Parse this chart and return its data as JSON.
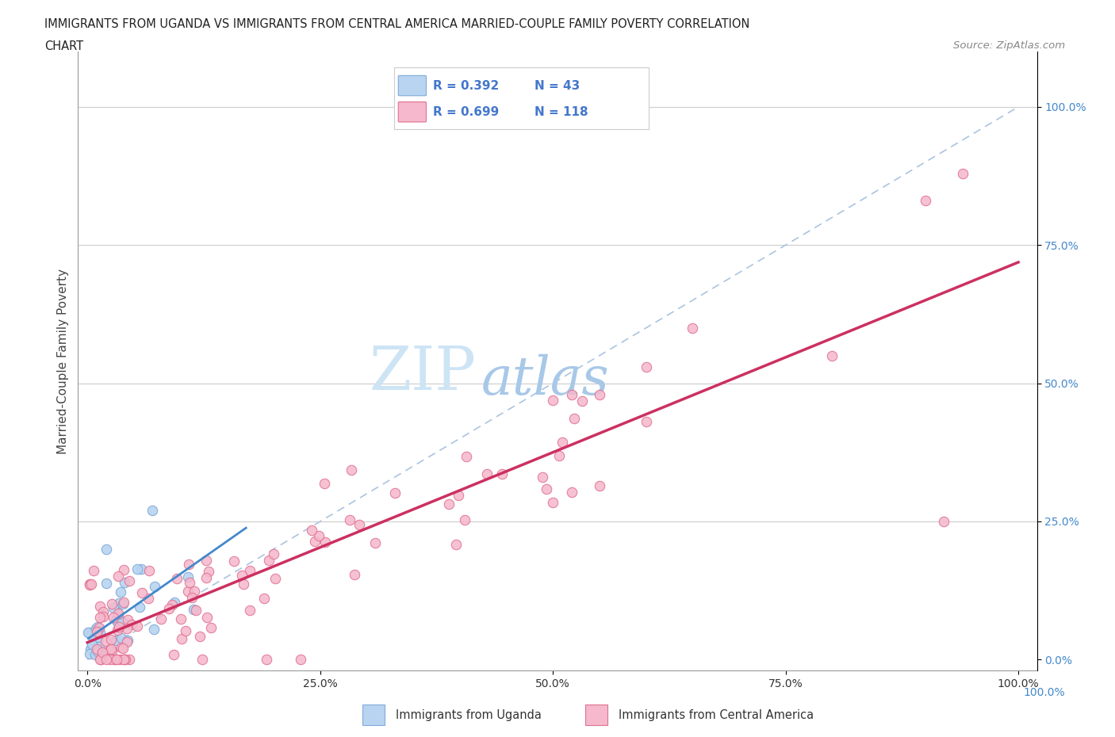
{
  "title_line1": "IMMIGRANTS FROM UGANDA VS IMMIGRANTS FROM CENTRAL AMERICA MARRIED-COUPLE FAMILY POVERTY CORRELATION",
  "title_line2": "CHART",
  "source_text": "Source: ZipAtlas.com",
  "ylabel": "Married-Couple Family Poverty",
  "xlim": [
    0,
    1.0
  ],
  "ylim": [
    -0.02,
    1.08
  ],
  "xtick_vals": [
    0.0,
    0.25,
    0.5,
    0.75,
    1.0
  ],
  "xtick_labels": [
    "0.0%",
    "25.0%",
    "50.0%",
    "75.0%",
    "100.0%"
  ],
  "right_ytick_vals": [
    0.0,
    0.25,
    0.5,
    0.75,
    1.0
  ],
  "right_ytick_labels": [
    "0.0%",
    "25.0%",
    "50.0%",
    "75.0%",
    "100.0%"
  ],
  "grid_ytick_vals": [
    0.25,
    0.5,
    0.75,
    1.0
  ],
  "diagonal_color": "#aac4e0",
  "diagonal_linestyle": "--",
  "uganda_color": "#b8d4f0",
  "uganda_edge_color": "#80aad8",
  "central_america_color": "#f5b8cc",
  "central_america_edge_color": "#e07090",
  "uganda_R": 0.392,
  "uganda_N": 43,
  "central_america_R": 0.699,
  "central_america_N": 118,
  "uganda_line_color": "#4488cc",
  "central_america_line_color": "#cc3060",
  "legend_color": "#4477cc",
  "watermark_zip": "ZIP",
  "watermark_atlas": "atlas",
  "watermark_color_zip": "#c8dff5",
  "watermark_color_atlas": "#a8c8e8",
  "right_label_color": "#4488cc",
  "bottom_label_color": "#4488cc"
}
